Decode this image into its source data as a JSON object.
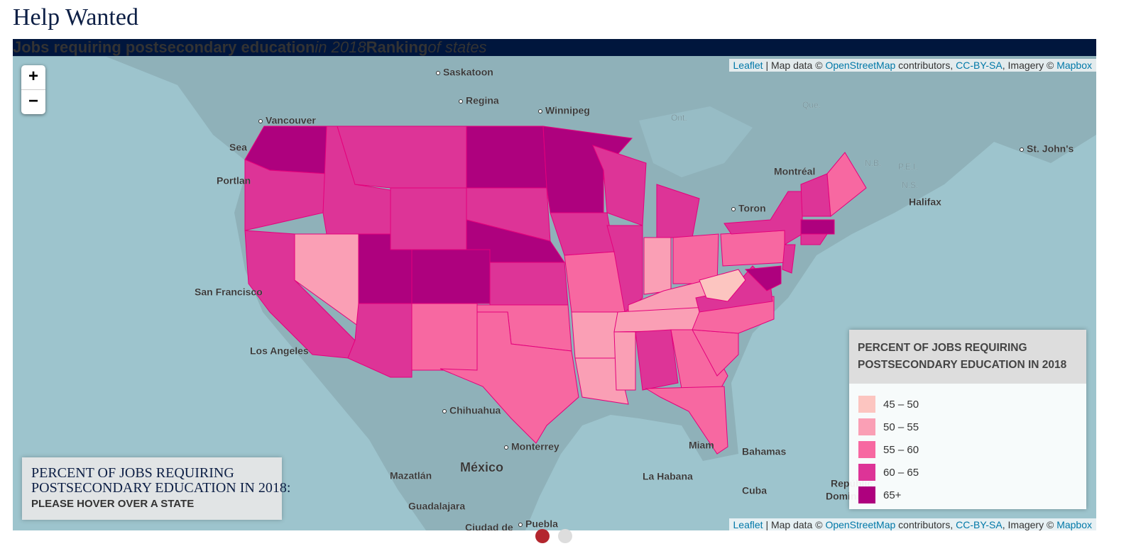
{
  "title": "Help Wanted",
  "header": [
    "Jobs requiring postsecondary education",
    "in 2018",
    "Ranking",
    "of states"
  ],
  "attribution": [
    "Leaflet",
    "| Map data ©",
    "OpenStreetMap",
    "contributors,",
    "CC-BY-SA",
    ", Imagery ©",
    "Mapbox"
  ],
  "zoom": {
    "in": "+",
    "out": "−"
  },
  "place_labels": [
    "Saskatoon",
    "Regina",
    "Winnipeg",
    "Vancouver",
    "Sea",
    "Portlan",
    "San Francisco",
    "Los Angeles",
    "Chihuahua",
    "Monterrey",
    "México",
    "Mazatlán",
    "Guadalajara",
    "Puebla",
    "Ciudad de",
    "Montréal",
    "Toron",
    "Halifax",
    "St. John's",
    "Ont.",
    "Que.",
    "N.B.",
    "P.E.I.",
    "N.S.",
    "Bahamas",
    "La Habana",
    "Cuba",
    "Miam",
    "Repúblic",
    "Dominica"
  ],
  "info": {
    "title": "PERCENT OF JOBS REQUIRING POSTSECONDARY EDUCATION IN 2018:",
    "prompt": "PLEASE HOVER OVER A STATE"
  },
  "legend": {
    "title": "PERCENT OF JOBS REQUIRING POSTSECONDARY EDUCATION IN 2018",
    "items": [
      {
        "label": "45 – 50",
        "color": "#fcc5c0"
      },
      {
        "label": "50 – 55",
        "color": "#fa9fb5"
      },
      {
        "label": "55 – 60",
        "color": "#f768a1"
      },
      {
        "label": "60 – 65",
        "color": "#dd3497"
      },
      {
        "label": "65+",
        "color": "#ae017e"
      }
    ]
  }
}
